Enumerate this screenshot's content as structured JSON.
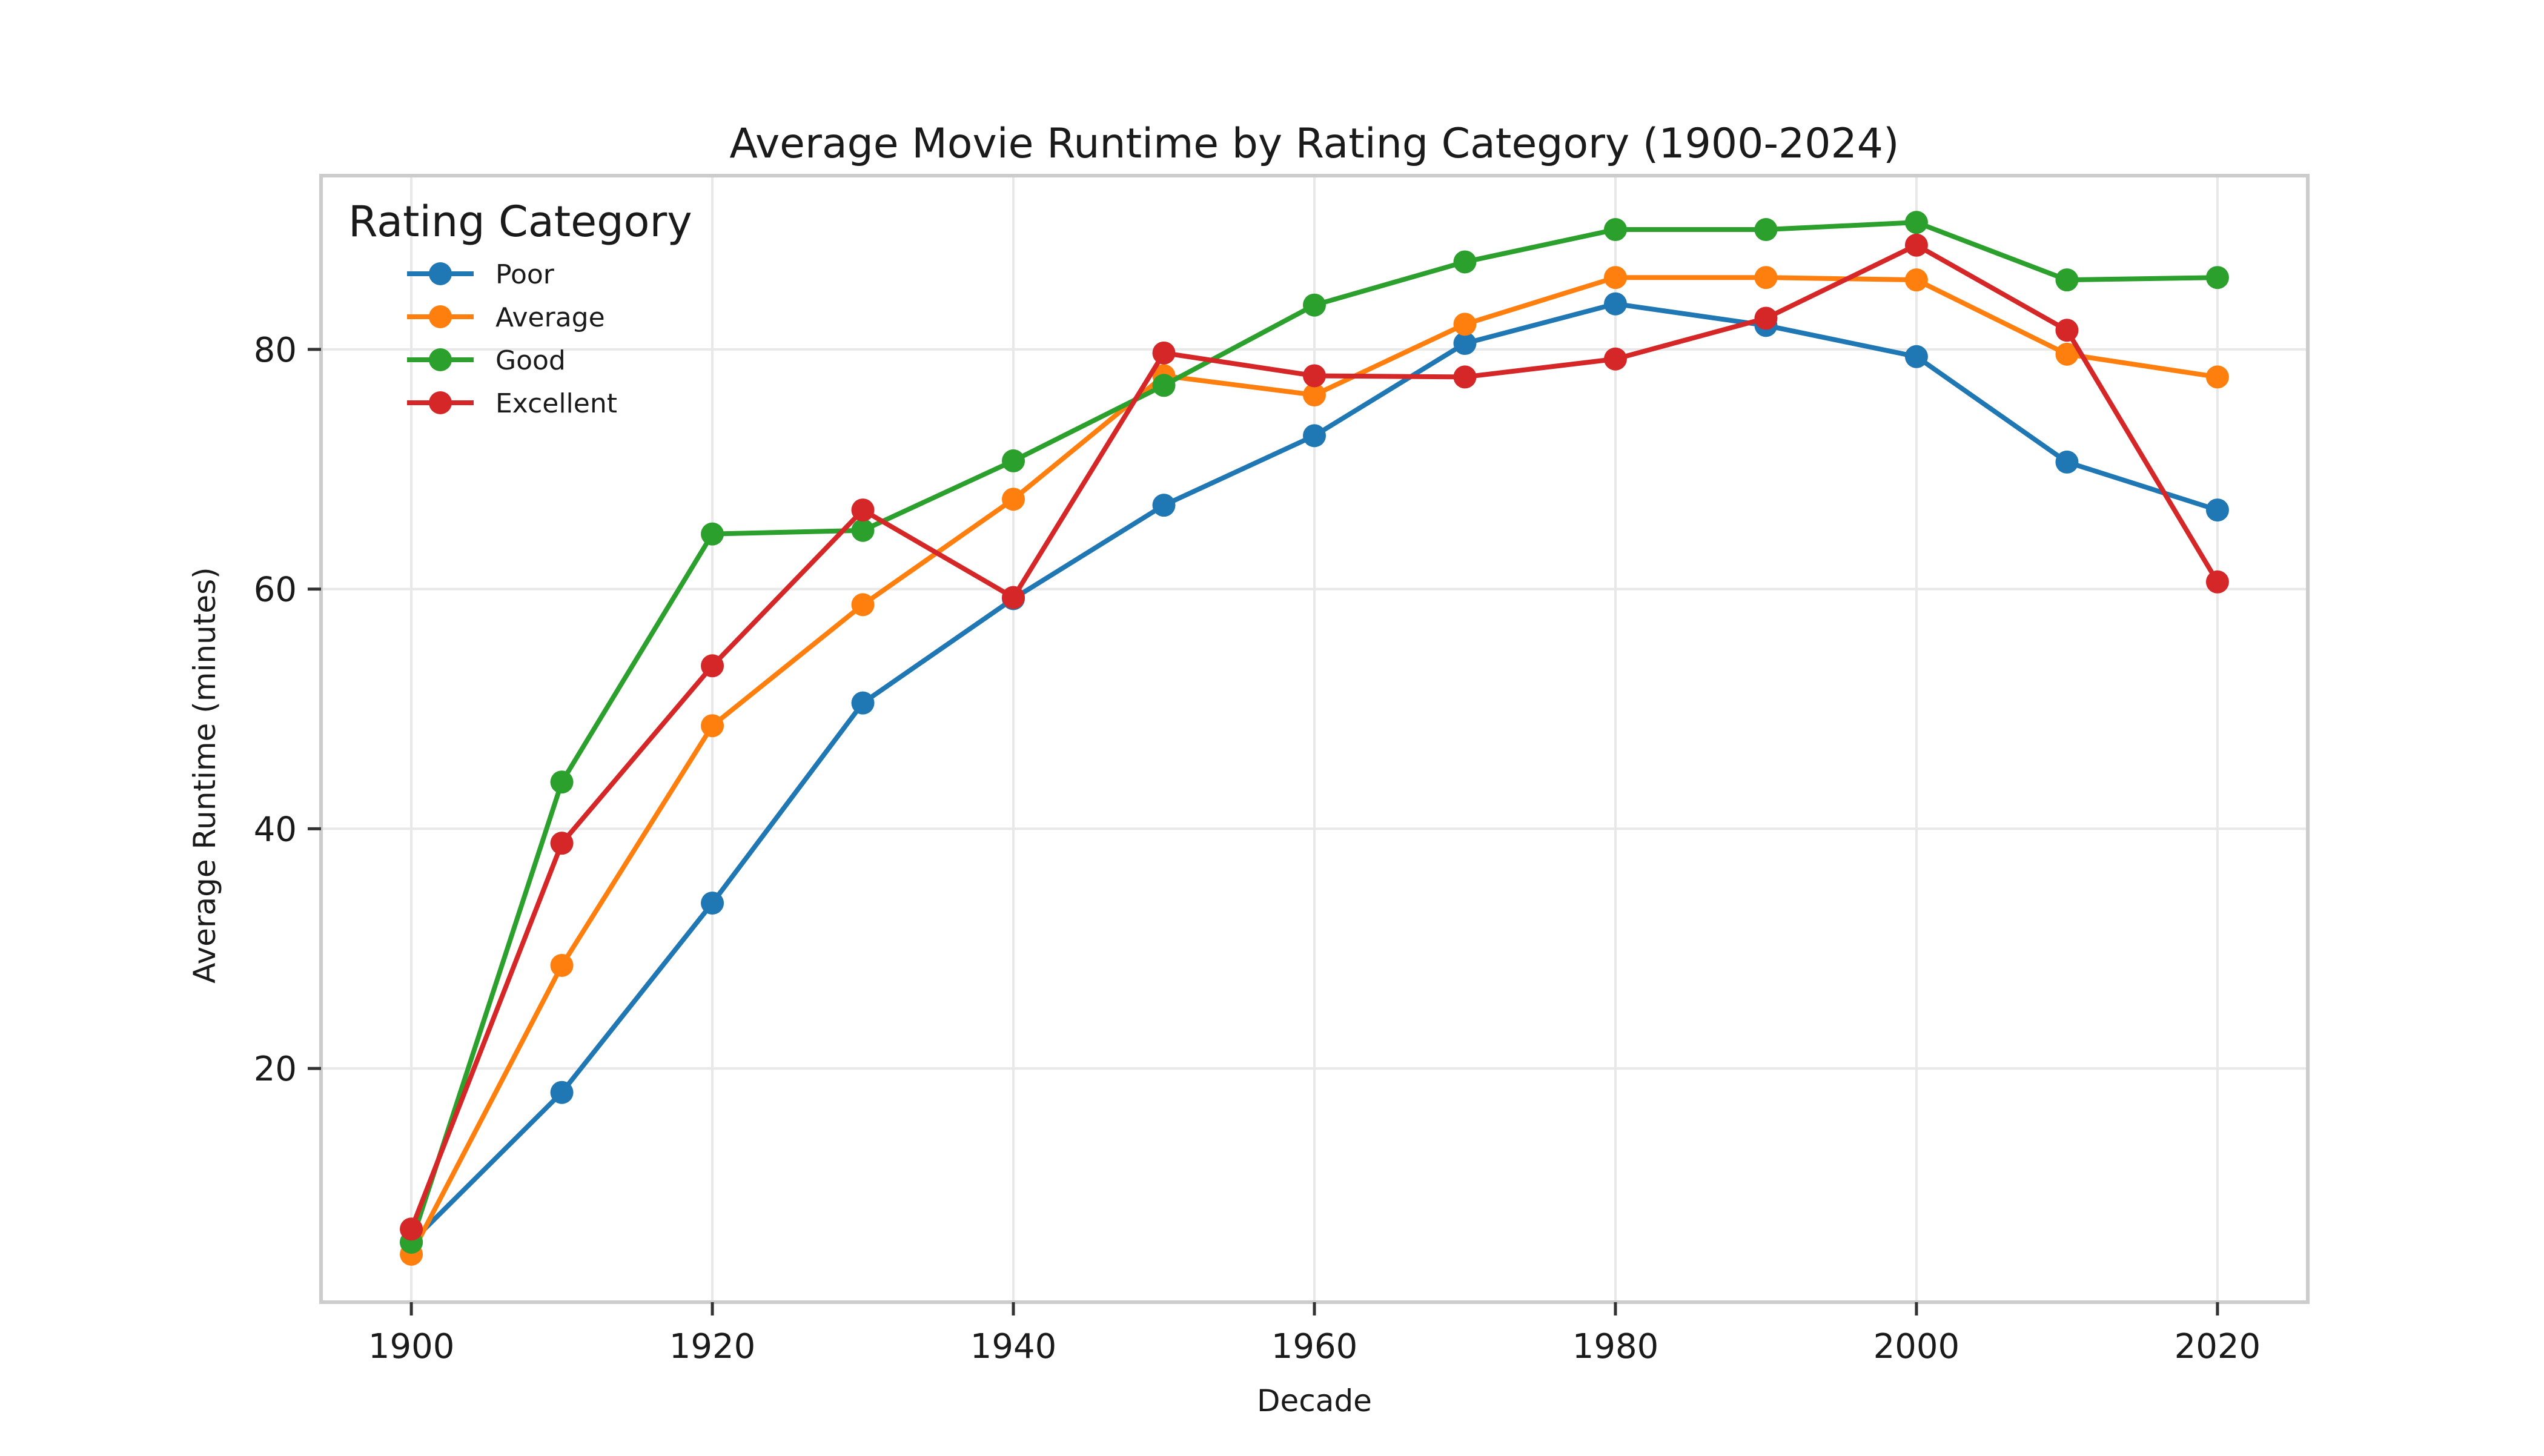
{
  "chart_data": {
    "type": "line",
    "title": "Average Movie Runtime by Rating Category (1900-2024)",
    "xlabel": "Decade",
    "ylabel": "Average Runtime (minutes)",
    "xlim": [
      1894,
      2026
    ],
    "ylim": [
      0.5,
      94.5
    ],
    "xticks": [
      1900,
      1920,
      1940,
      1960,
      1980,
      2000,
      2020
    ],
    "yticks": [
      20,
      40,
      60,
      80
    ],
    "grid": true,
    "legend": {
      "title": "Rating Category",
      "position": "top-left"
    },
    "x": [
      1900,
      1910,
      1920,
      1930,
      1940,
      1950,
      1960,
      1970,
      1980,
      1990,
      2000,
      2010,
      2020
    ],
    "series": [
      {
        "name": "Poor",
        "color": "#1f77b4",
        "values": [
          5.5,
          18.0,
          33.8,
          50.5,
          59.2,
          67.0,
          72.8,
          80.5,
          83.8,
          82.0,
          79.4,
          70.6,
          66.6
        ]
      },
      {
        "name": "Average",
        "color": "#ff7f0e",
        "values": [
          4.5,
          28.6,
          48.6,
          58.7,
          67.5,
          77.8,
          76.2,
          82.1,
          86.0,
          86.0,
          85.8,
          79.6,
          77.7
        ]
      },
      {
        "name": "Good",
        "color": "#2ca02c",
        "values": [
          5.5,
          43.9,
          64.6,
          64.9,
          70.7,
          77.0,
          83.7,
          87.3,
          90.0,
          90.0,
          90.6,
          85.8,
          86.0
        ]
      },
      {
        "name": "Excellent",
        "color": "#d62728",
        "values": [
          6.6,
          38.8,
          53.6,
          66.6,
          59.3,
          79.7,
          77.8,
          77.7,
          79.2,
          82.6,
          88.7,
          81.6,
          60.6
        ]
      }
    ]
  }
}
